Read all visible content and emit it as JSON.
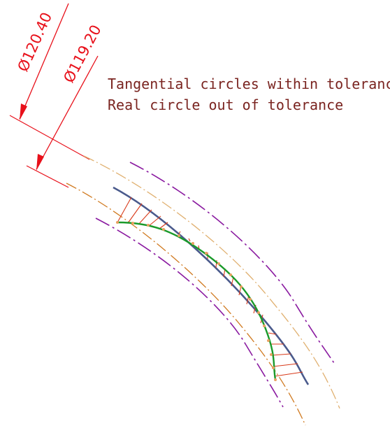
{
  "dimensions": {
    "outer": "Ø120.40",
    "inner": "Ø119.20"
  },
  "notes": {
    "line1": "Tangential circles within tolerance",
    "line2": "Real circle out of tolerance"
  },
  "colors": {
    "dimension": "#e8101a",
    "note_text": "#7a2420",
    "nominal_arc": "#4a5a8c",
    "measured_profile": "#1a9a2a",
    "deviation_hatch": "#d83a1a",
    "tolerance_outer": "#e0b070",
    "tolerance_inner": "#d07a20",
    "tangential_circle": "#8a1aa0",
    "sample_point": "#e8a060"
  }
}
